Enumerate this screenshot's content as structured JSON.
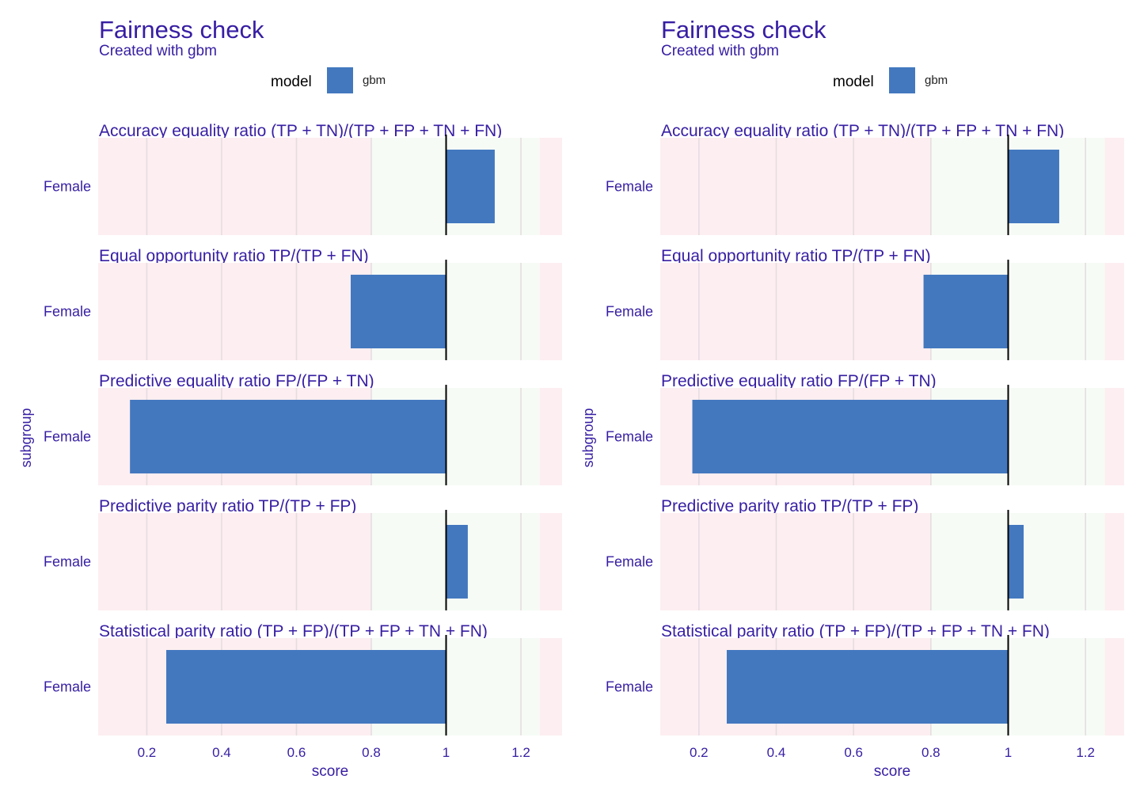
{
  "colors": {
    "title": "#371ea3",
    "bar": "#4378bf",
    "red_zone": "#fdeef1",
    "green_zone": "#f6fbf6",
    "grid": "#e5dde0",
    "zero_line": "#000000"
  },
  "chart_data": [
    {
      "type": "bar",
      "orientation": "horizontal",
      "title": "Fairness check",
      "subtitle": "Created with gbm",
      "legend": {
        "title": "model",
        "items": [
          "gbm"
        ],
        "position": "top"
      },
      "xlabel": "score",
      "ylabel": "subgroup",
      "xlim": [
        0.07,
        1.31
      ],
      "xticks": [
        0.2,
        0.4,
        0.6,
        0.8,
        1.0,
        1.2
      ],
      "xtick_labels": [
        "0.2",
        "0.4",
        "0.6",
        "0.8",
        "1",
        "1.2"
      ],
      "baseline": 1,
      "fair_zone": [
        0.8,
        1.25
      ],
      "panels": [
        {
          "metric": "Accuracy equality ratio",
          "formula": "(TP + TN)/(TP + FP + TN + FN)",
          "categories": [
            "Female"
          ],
          "values": [
            1.13
          ]
        },
        {
          "metric": "Equal opportunity ratio",
          "formula": "TP/(TP + FN)",
          "categories": [
            "Female"
          ],
          "values": [
            0.745
          ]
        },
        {
          "metric": "Predictive equality ratio",
          "formula": "FP/(FP + TN)",
          "categories": [
            "Female"
          ],
          "values": [
            0.155
          ]
        },
        {
          "metric": "Predictive parity ratio",
          "formula": "TP/(TP + FP)",
          "categories": [
            "Female"
          ],
          "values": [
            1.058
          ]
        },
        {
          "metric": "Statistical parity ratio",
          "formula": "(TP + FP)/(TP + FP + TN + FN)",
          "categories": [
            "Female"
          ],
          "values": [
            0.252
          ]
        }
      ]
    },
    {
      "type": "bar",
      "orientation": "horizontal",
      "title": "Fairness check",
      "subtitle": "Created with gbm",
      "legend": {
        "title": "model",
        "items": [
          "gbm"
        ],
        "position": "top"
      },
      "xlabel": "score",
      "ylabel": "subgroup",
      "xlim": [
        0.1,
        1.3
      ],
      "xticks": [
        0.2,
        0.4,
        0.6,
        0.8,
        1.0,
        1.2
      ],
      "xtick_labels": [
        "0.2",
        "0.4",
        "0.6",
        "0.8",
        "1",
        "1.2"
      ],
      "baseline": 1,
      "fair_zone": [
        0.8,
        1.25
      ],
      "panels": [
        {
          "metric": "Accuracy equality ratio",
          "formula": "(TP + TN)/(TP + FP + TN + FN)",
          "categories": [
            "Female"
          ],
          "values": [
            1.132
          ]
        },
        {
          "metric": "Equal opportunity ratio",
          "formula": "TP/(TP + FN)",
          "categories": [
            "Female"
          ],
          "values": [
            0.781
          ]
        },
        {
          "metric": "Predictive equality ratio",
          "formula": "FP/(FP + TN)",
          "categories": [
            "Female"
          ],
          "values": [
            0.183
          ]
        },
        {
          "metric": "Predictive parity ratio",
          "formula": "TP/(TP + FP)",
          "categories": [
            "Female"
          ],
          "values": [
            1.04
          ]
        },
        {
          "metric": "Statistical parity ratio",
          "formula": "(TP + FP)/(TP + FP + TN + FN)",
          "categories": [
            "Female"
          ],
          "values": [
            0.272
          ]
        }
      ]
    }
  ]
}
